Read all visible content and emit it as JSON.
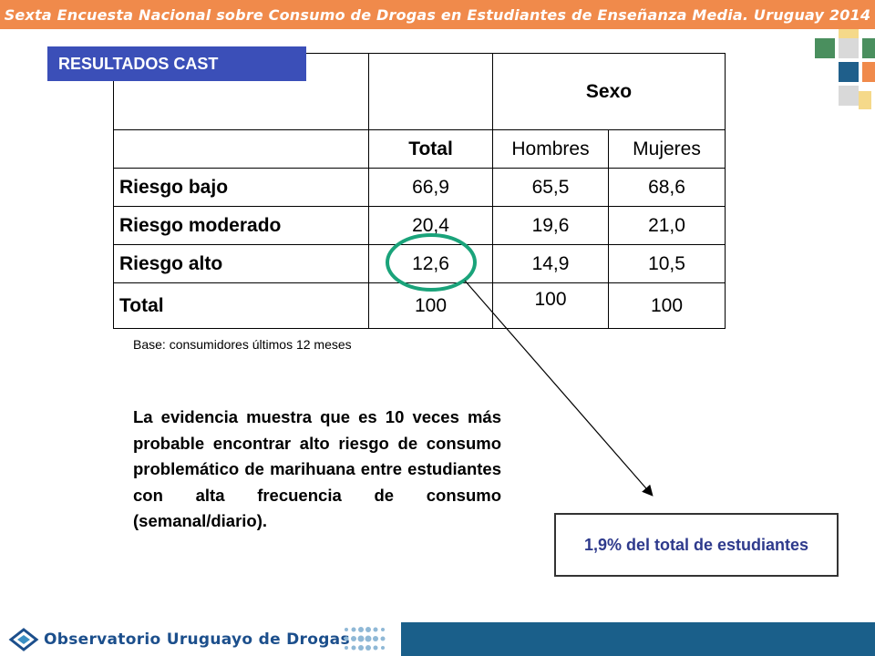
{
  "header": {
    "banner_title": "Sexta Encuesta Nacional sobre Consumo de Drogas en Estudiantes de Enseñanza Media. Uruguay 2014"
  },
  "badge": {
    "label": "RESULTADOS CAST"
  },
  "table": {
    "group_header": "Sexo",
    "columns": {
      "total": "Total",
      "hombres": "Hombres",
      "mujeres": "Mujeres"
    },
    "rows": [
      {
        "label": "Riesgo bajo",
        "total": "66,9",
        "hombres": "65,5",
        "mujeres": "68,6"
      },
      {
        "label": "Riesgo moderado",
        "total": "20,4",
        "hombres": "19,6",
        "mujeres": "21,0"
      },
      {
        "label": "Riesgo alto",
        "total": "12,6",
        "hombres": "14,9",
        "mujeres": "10,5"
      },
      {
        "label": "Total",
        "total": "100",
        "hombres": "100",
        "mujeres": "100"
      }
    ]
  },
  "base_note": "Base: consumidores últimos 12 meses",
  "evidence_text": "La evidencia muestra que es 10 veces más probable encontrar alto riesgo de consumo problemático de marihuana entre estudiantes con alta frecuencia de consumo (semanal/diario).",
  "callout_text": "1,9% del total de estudiantes",
  "footer": {
    "organization": "Observatorio Uruguayo de Drogas"
  },
  "colors": {
    "banner": "#f08a4b",
    "badge": "#3b4fb8",
    "highlight_circle": "#1aa37a",
    "callout_text": "#2e3a8c",
    "footer": "#1a5f8a"
  }
}
